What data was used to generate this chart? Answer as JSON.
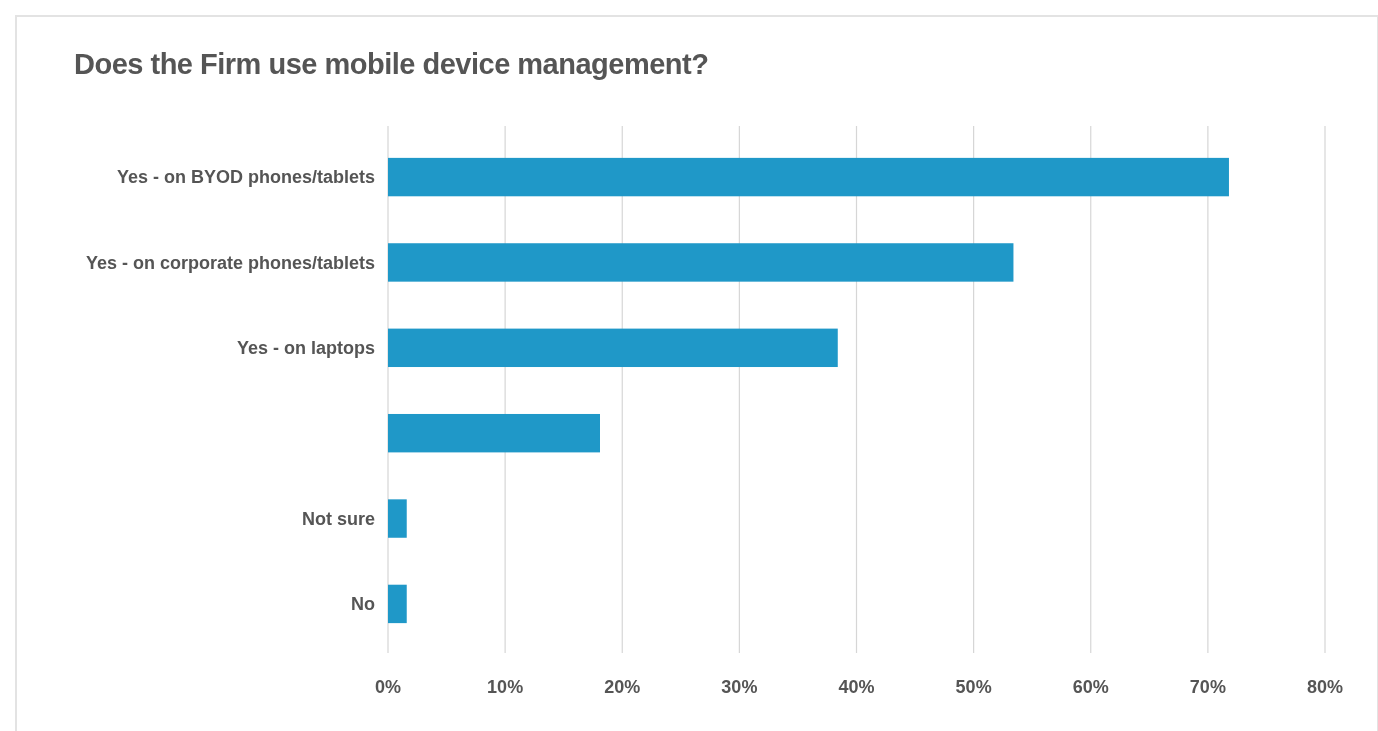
{
  "chart_data": {
    "type": "bar",
    "orientation": "horizontal",
    "title": "Does the Firm use mobile device management?",
    "categories": [
      "Yes - on BYOD phones/tablets",
      "Yes - on corporate phones/tablets",
      "Yes - on laptops",
      null,
      "Not sure",
      "No"
    ],
    "values": [
      71.8,
      53.4,
      38.4,
      18.1,
      1.6,
      1.6
    ],
    "color": "#1f98c8",
    "xlim": [
      0,
      80
    ],
    "xticks": [
      {
        "value": 0,
        "label": "0%"
      },
      {
        "value": 10,
        "label": "10%"
      },
      {
        "value": 20,
        "label": "20%"
      },
      {
        "value": 30,
        "label": "30%"
      },
      {
        "value": 40,
        "label": "40%"
      },
      {
        "value": 50,
        "label": "50%"
      },
      {
        "value": 60,
        "label": "60%"
      },
      {
        "value": 70,
        "label": "70%"
      },
      {
        "value": 80,
        "label": "80%"
      }
    ],
    "grid": "x"
  }
}
